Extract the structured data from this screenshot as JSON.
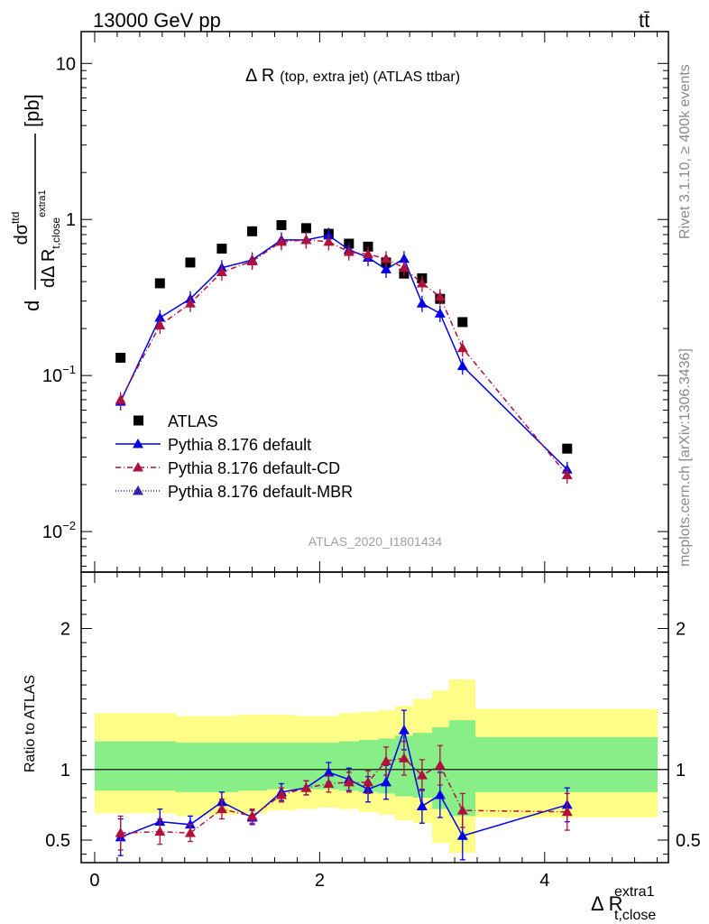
{
  "header": {
    "left": "13000 GeV pp",
    "right": "tt̄"
  },
  "side_text": {
    "rivet": "Rivet 3.1.10, ≥ 400k events",
    "mcplots": "mcplots.cern.ch [arXiv:1306.3436]"
  },
  "chart_data": [
    {
      "type": "scatter",
      "title": "Δ R (top, extra jet) (ATLAS ttbar)",
      "title_main": "Δ R",
      "title_sub": "(top, extra jet) (ATLAS ttbar)",
      "ylabel": "dσ^ttd / dΔ R_t,close^extra1 [pb]",
      "ylabel_parts": {
        "d": "d",
        "sigma": "dσ",
        "sigma_sup": "ttd",
        "den": "dΔ R",
        "den_sub": "t,close",
        "den_sup": "extra1",
        "unit": "[pb]"
      },
      "yscale": "log",
      "ylim": [
        0.0055,
        16
      ],
      "y_ticks": [
        {
          "v": 10,
          "label": "10"
        },
        {
          "v": 1,
          "label": "1"
        },
        {
          "v": 0.1,
          "label": "10",
          "sup": "−1"
        },
        {
          "v": 0.01,
          "label": "10",
          "sup": "−2"
        }
      ],
      "xlim": [
        -0.12,
        5.1
      ],
      "watermark": "ATLAS_2020_I1801434",
      "legend_position": "lower-left",
      "series": [
        {
          "name": "ATLAS",
          "color": "#000000",
          "marker": "square",
          "x": [
            0.23,
            0.58,
            0.85,
            1.13,
            1.4,
            1.66,
            1.88,
            2.08,
            2.26,
            2.43,
            2.59,
            2.75,
            2.91,
            3.07,
            3.27,
            4.2
          ],
          "y": [
            0.13,
            0.39,
            0.53,
            0.65,
            0.84,
            0.92,
            0.88,
            0.81,
            0.7,
            0.67,
            0.53,
            0.45,
            0.42,
            0.31,
            0.22,
            0.034
          ]
        },
        {
          "name": "Pythia 8.176 default",
          "color": "#0000e6",
          "marker": "triangle",
          "line": "solid",
          "x": [
            0.23,
            0.58,
            0.85,
            1.13,
            1.4,
            1.66,
            1.88,
            2.08,
            2.26,
            2.43,
            2.59,
            2.75,
            2.91,
            3.07,
            3.27,
            4.2
          ],
          "y": [
            0.068,
            0.235,
            0.31,
            0.49,
            0.55,
            0.74,
            0.74,
            0.79,
            0.64,
            0.57,
            0.48,
            0.56,
            0.29,
            0.25,
            0.115,
            0.025
          ]
        },
        {
          "name": "Pythia 8.176 default-CD",
          "color": "#b0103c",
          "marker": "triangle",
          "line": "dashdot",
          "x": [
            0.23,
            0.58,
            0.85,
            1.13,
            1.4,
            1.66,
            1.88,
            2.08,
            2.26,
            2.43,
            2.59,
            2.75,
            2.91,
            3.07,
            3.27,
            4.2
          ],
          "y": [
            0.07,
            0.21,
            0.29,
            0.46,
            0.54,
            0.72,
            0.74,
            0.72,
            0.62,
            0.6,
            0.56,
            0.49,
            0.39,
            0.32,
            0.15,
            0.023
          ]
        },
        {
          "name": "Pythia 8.176 default-MBR",
          "color": "#3a1fb0",
          "marker": "triangle",
          "line": "dotted",
          "x": [],
          "y": []
        }
      ]
    },
    {
      "type": "scatter",
      "ylabel": "Ratio to ATLAS",
      "xlabel": "Δ R_t,close^extra1",
      "xlabel_parts": {
        "main": "Δ R",
        "sub": "t,close",
        "sup": "extra1"
      },
      "ylim": [
        0.34,
        2.4
      ],
      "xlim": [
        -0.12,
        5.1
      ],
      "y_ticks": [
        {
          "v": 2,
          "label": "2"
        },
        {
          "v": 1,
          "label": "1"
        },
        {
          "v": 0.5,
          "label": "0.5"
        }
      ],
      "x_ticks": [
        {
          "v": 0,
          "label": "0"
        },
        {
          "v": 2,
          "label": "2"
        },
        {
          "v": 4,
          "label": "4"
        }
      ],
      "bands": {
        "edges": [
          0,
          0.45,
          0.72,
          1.0,
          1.27,
          1.53,
          1.78,
          1.98,
          2.17,
          2.35,
          2.52,
          2.67,
          2.83,
          3.0,
          3.15,
          3.38,
          5.0
        ],
        "yellow_low": [
          0.69,
          0.69,
          0.67,
          0.68,
          0.69,
          0.71,
          0.72,
          0.73,
          0.72,
          0.7,
          0.68,
          0.64,
          0.62,
          0.48,
          0.41,
          0.66
        ],
        "yellow_high": [
          1.4,
          1.4,
          1.38,
          1.38,
          1.39,
          1.39,
          1.38,
          1.38,
          1.4,
          1.41,
          1.42,
          1.45,
          1.5,
          1.56,
          1.64,
          1.43
        ],
        "green_low": [
          0.85,
          0.85,
          0.84,
          0.84,
          0.85,
          0.86,
          0.86,
          0.86,
          0.85,
          0.84,
          0.83,
          0.81,
          0.8,
          0.72,
          0.67,
          0.84
        ],
        "green_high": [
          1.2,
          1.2,
          1.19,
          1.19,
          1.19,
          1.19,
          1.19,
          1.19,
          1.2,
          1.21,
          1.22,
          1.24,
          1.26,
          1.3,
          1.35,
          1.23
        ],
        "yellow_color": "#ffff88",
        "green_color": "#88ee88"
      },
      "series": [
        {
          "name": "Pythia 8.176 default",
          "color": "#0000e6",
          "x": [
            0.23,
            0.58,
            0.85,
            1.13,
            1.4,
            1.66,
            1.88,
            2.08,
            2.26,
            2.43,
            2.59,
            2.75,
            2.91,
            3.07,
            3.27,
            4.2
          ],
          "y": [
            0.52,
            0.63,
            0.61,
            0.77,
            0.66,
            0.84,
            0.87,
            0.98,
            0.93,
            0.86,
            0.91,
            1.28,
            0.74,
            0.82,
            0.53,
            0.75
          ],
          "err": [
            0.13,
            0.09,
            0.06,
            0.07,
            0.05,
            0.06,
            0.05,
            0.07,
            0.08,
            0.09,
            0.12,
            0.14,
            0.12,
            0.16,
            0.17,
            0.12
          ]
        },
        {
          "name": "Pythia 8.176 default-CD",
          "color": "#b0103c",
          "x": [
            0.23,
            0.58,
            0.85,
            1.13,
            1.4,
            1.66,
            1.88,
            2.08,
            2.26,
            2.43,
            2.59,
            2.75,
            2.91,
            3.07,
            3.27,
            4.2
          ],
          "y": [
            0.55,
            0.56,
            0.55,
            0.72,
            0.67,
            0.82,
            0.87,
            0.9,
            0.91,
            0.91,
            1.06,
            1.08,
            0.96,
            1.03,
            0.71,
            0.7
          ],
          "err": [
            0.12,
            0.09,
            0.06,
            0.07,
            0.05,
            0.05,
            0.05,
            0.06,
            0.07,
            0.08,
            0.1,
            0.12,
            0.11,
            0.14,
            0.12,
            0.13
          ]
        }
      ]
    }
  ]
}
